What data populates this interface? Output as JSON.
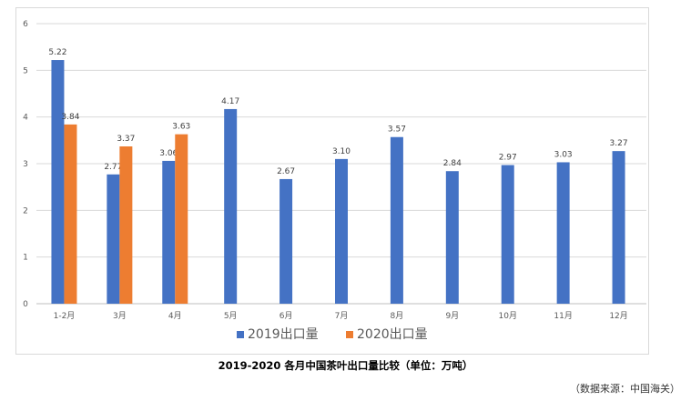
{
  "chart_data": {
    "type": "bar",
    "categories": [
      "1-2月",
      "3月",
      "4月",
      "5月",
      "6月",
      "7月",
      "8月",
      "9月",
      "10月",
      "11月",
      "12月"
    ],
    "series": [
      {
        "name": "2019出口量",
        "color": "#4472c4",
        "values": [
          5.22,
          2.77,
          3.06,
          4.17,
          2.67,
          3.1,
          3.57,
          2.84,
          2.97,
          3.03,
          3.27
        ],
        "labels": [
          "5.22",
          "2.77",
          "3.06",
          "4.17",
          "2.67",
          "3.10",
          "3.57",
          "2.84",
          "2.97",
          "3.03",
          "3.27"
        ]
      },
      {
        "name": "2020出口量",
        "color": "#ed7d31",
        "values": [
          3.84,
          3.37,
          3.63,
          null,
          null,
          null,
          null,
          null,
          null,
          null,
          null
        ],
        "labels": [
          "3.84",
          "3.37",
          "3.63",
          null,
          null,
          null,
          null,
          null,
          null,
          null,
          null
        ]
      }
    ],
    "yticks": [
      "0",
      "1",
      "2",
      "3",
      "4",
      "5",
      "6"
    ],
    "ylim": [
      0,
      6
    ],
    "grid": true,
    "legend": "bottom",
    "caption": "2019-2020 各月中国茶叶出口量比较（单位：万吨）",
    "source": "（数据来源：中国海关）"
  }
}
